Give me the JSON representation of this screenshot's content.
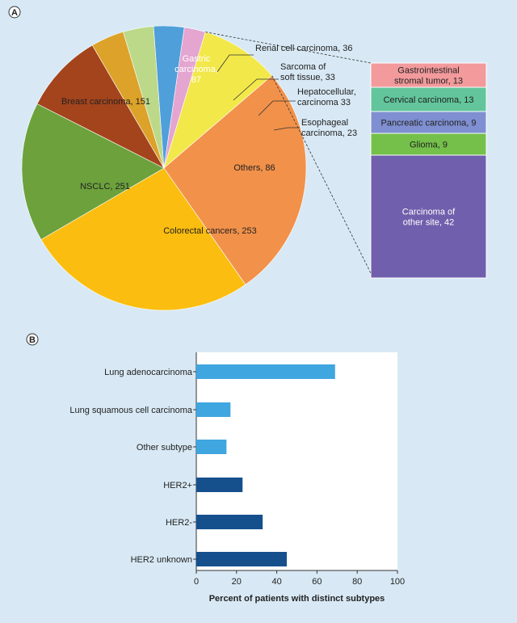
{
  "chart_data": [
    {
      "panel": "A",
      "type": "pie",
      "slices": [
        {
          "label": [
            "NSCLC, 251"
          ],
          "value": 251,
          "color": "#fbbd0f"
        },
        {
          "label": [
            "Breast carcinoma, 151"
          ],
          "value": 151,
          "color": "#6ca13c"
        },
        {
          "label": [
            "Gastric",
            "carcinoma,",
            "87"
          ],
          "value": 87,
          "color": "#a3441c",
          "text": "white"
        },
        {
          "label": [
            "Renal cell carcinoma, 36"
          ],
          "value": 36,
          "color": "#dca22a"
        },
        {
          "label": [
            "Sarcoma of",
            "soft tissue, 33"
          ],
          "value": 33,
          "color": "#bcd98a"
        },
        {
          "label": [
            "Hepatocellular,",
            "carcinoma 33"
          ],
          "value": 33,
          "color": "#4f9fda"
        },
        {
          "label": [
            "Esophageal",
            "carcinoma, 23"
          ],
          "value": 23,
          "color": "#e4a5d0"
        },
        {
          "label": [
            "Others, 86"
          ],
          "value": 86,
          "color": "#f2e84a"
        },
        {
          "label": [
            "Colorectal cancers, 253"
          ],
          "value": 253,
          "color": "#f2914a"
        }
      ],
      "others_breakdown": [
        {
          "label": [
            "Gastrointestinal",
            "stromal tumor, 13"
          ],
          "value": 13,
          "color": "#f39a9c"
        },
        {
          "label": [
            "Cervical carcinoma, 13"
          ],
          "value": 13,
          "color": "#62c59b"
        },
        {
          "label": [
            "Pancreatic carcinoma, 9"
          ],
          "value": 9,
          "color": "#7f8fd1"
        },
        {
          "label": [
            "Glioma, 9"
          ],
          "value": 9,
          "color": "#74c04a"
        },
        {
          "label": [
            "Carcinoma of",
            "other site, 42"
          ],
          "value": 42,
          "color": "#6f5fac",
          "text": "white"
        }
      ]
    },
    {
      "panel": "B",
      "type": "bar",
      "orientation": "horizontal",
      "categories": [
        "Lung adenocarcinoma",
        "Lung squamous cell carcinoma",
        "Other subtype",
        "HER2+",
        "HER2-",
        "HER2 unknown"
      ],
      "values": [
        69,
        17,
        15,
        23,
        33,
        45
      ],
      "colors": [
        "#3fa6e0",
        "#3fa6e0",
        "#3fa6e0",
        "#15508d",
        "#15508d",
        "#15508d"
      ],
      "xlabel": "Percent of patients with distinct subtypes",
      "xlim": [
        0,
        100
      ],
      "xticks": [
        0,
        20,
        40,
        60,
        80,
        100
      ]
    }
  ],
  "panel_labels": {
    "a": "A",
    "b": "B"
  }
}
